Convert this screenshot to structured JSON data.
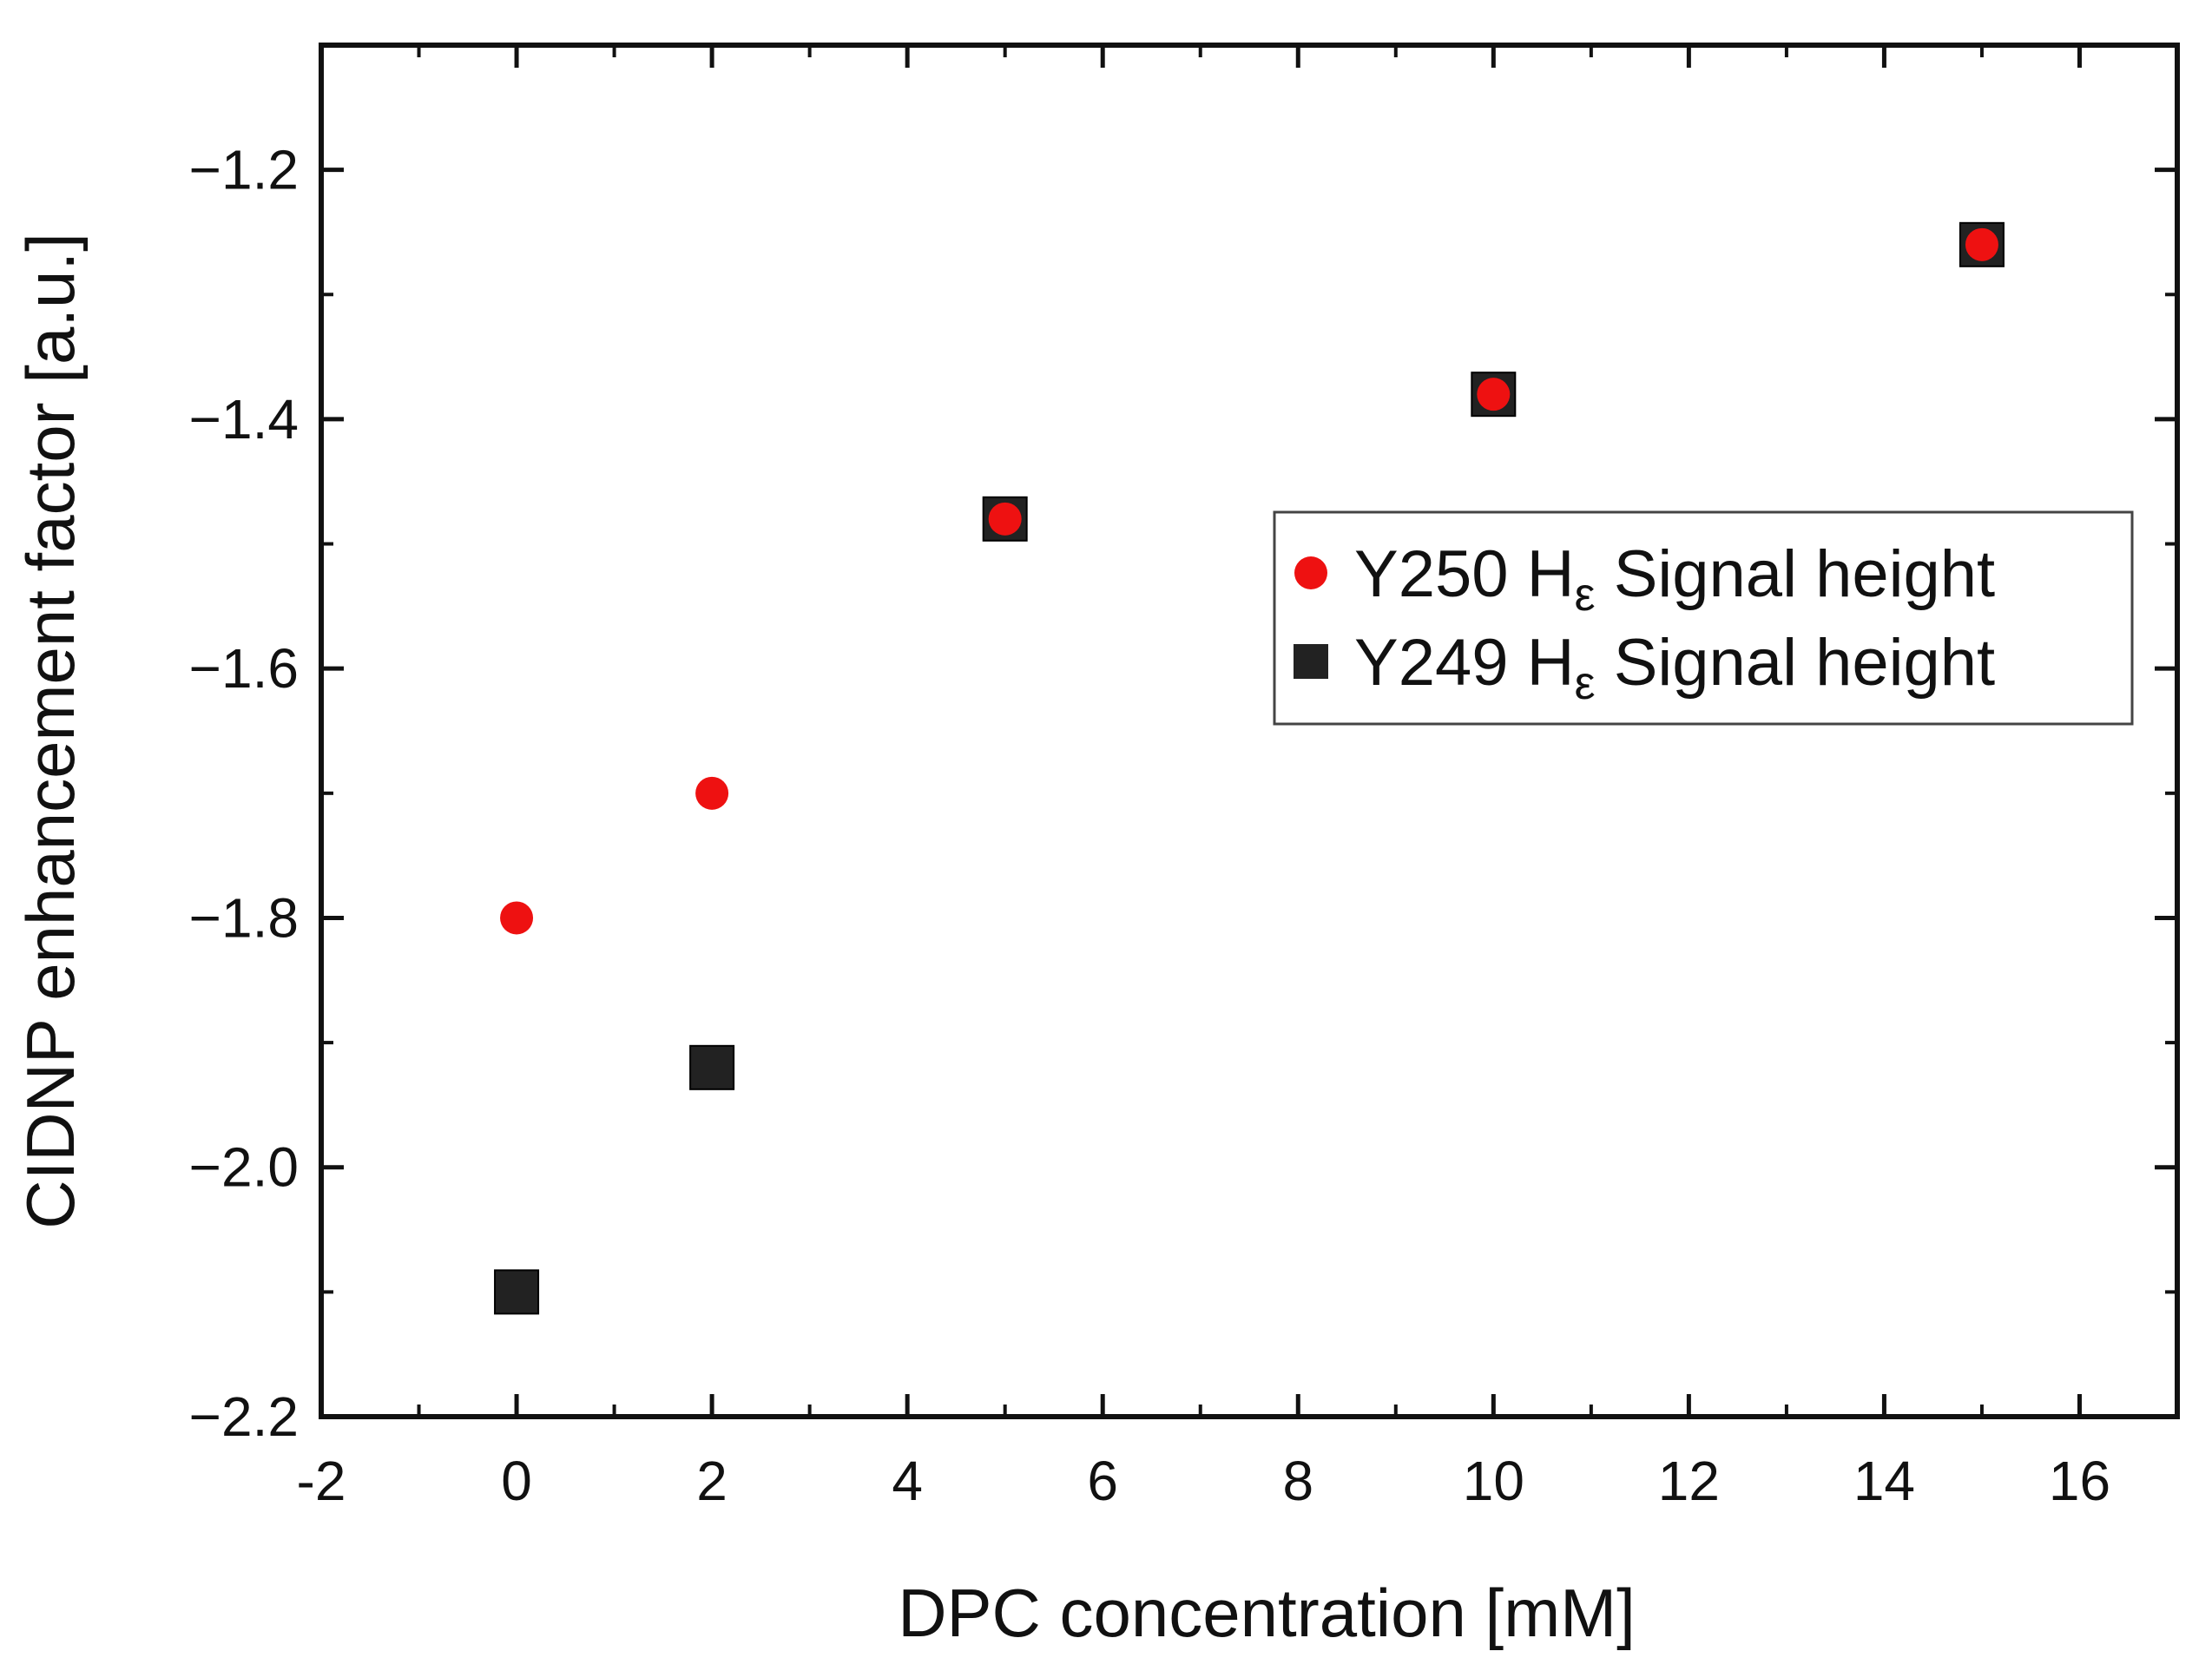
{
  "chart_data": {
    "type": "scatter",
    "title": "",
    "xlabel": "DPC concentration [mM]",
    "ylabel": "CIDNP enhancement factor [a.u.]",
    "xlim": [
      -2,
      17
    ],
    "ylim": [
      -2.2,
      -1.1
    ],
    "x_major_ticks": [
      -2,
      0,
      2,
      4,
      6,
      8,
      10,
      12,
      14,
      16
    ],
    "x_tick_labels": [
      "-2",
      "0",
      "2",
      "4",
      "6",
      "8",
      "10",
      "12",
      "14",
      "16"
    ],
    "y_major_ticks": [
      -1.2,
      -1.4,
      -1.6,
      -1.8,
      -2.0,
      -2.2
    ],
    "y_tick_labels": [
      "−1.2",
      "−1.4",
      "−1.6",
      "−1.8",
      "−2.0",
      "−2.2"
    ],
    "grid": false,
    "legend_position": "upper-right",
    "series": [
      {
        "name": "Y249 Hε Signal height",
        "legend_main": "Y249 H",
        "legend_sub": "ε",
        "legend_rest": " Signal height",
        "marker": "square",
        "color": "#222222",
        "x": [
          0,
          2,
          5,
          10,
          15
        ],
        "y": [
          -2.1,
          -1.92,
          -1.48,
          -1.38,
          -1.26
        ]
      },
      {
        "name": "Y250 Hε Signal height",
        "legend_main": "Y250 H",
        "legend_sub": "ε",
        "legend_rest": " Signal height",
        "marker": "circle",
        "color": "#ee1111",
        "x": [
          0,
          2,
          5,
          10,
          15
        ],
        "y": [
          -1.8,
          -1.7,
          -1.48,
          -1.38,
          -1.26
        ]
      }
    ],
    "legend_order": [
      1,
      0
    ]
  }
}
